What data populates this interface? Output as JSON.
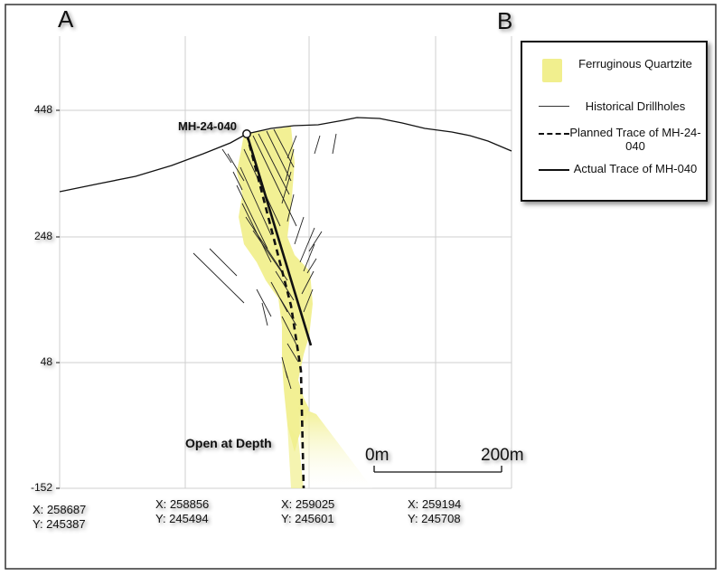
{
  "section": {
    "start": "A",
    "end": "B"
  },
  "y_ticks": [
    "448",
    "248",
    "48",
    "-152"
  ],
  "x_ticks": [
    {
      "x": "X: 258687",
      "y": "Y: 245387"
    },
    {
      "x": "X: 258856",
      "y": "Y: 245494"
    },
    {
      "x": "X: 259025",
      "y": "Y: 245601"
    },
    {
      "x": "X: 259194",
      "y": "Y: 245708"
    }
  ],
  "drillhole_label": "MH-24-040",
  "annotation": "Open at Depth",
  "scale_bar": {
    "start": "0m",
    "end": "200m"
  },
  "legend": {
    "ferruginous": "Ferruginous Quartzite",
    "historical": "Historical Drillholes",
    "planned": "Planned Trace of MH-24-040",
    "actual": "Actual Trace of MH-040"
  },
  "colors": {
    "ferruginous": "#f1ef8e",
    "grid": "#cfcfcf",
    "lines": "#111111"
  }
}
